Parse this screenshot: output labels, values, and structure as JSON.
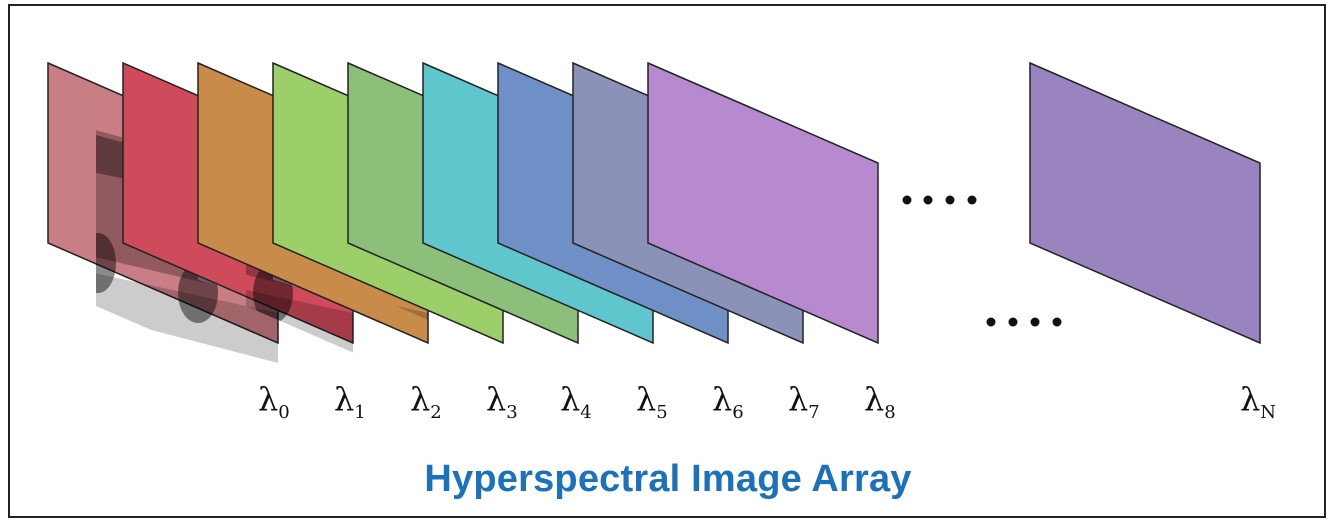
{
  "caption": "Hyperspectral Image Array",
  "symbol": "λ",
  "frames": [
    {
      "subscript": "0",
      "tint": "#c97d84"
    },
    {
      "subscript": "1",
      "tint": "#cf4a5a"
    },
    {
      "subscript": "2",
      "tint": "#c98b4a"
    },
    {
      "subscript": "3",
      "tint": "#9ccf6a"
    },
    {
      "subscript": "4",
      "tint": "#8cc07a"
    },
    {
      "subscript": "5",
      "tint": "#5ec6cc"
    },
    {
      "subscript": "6",
      "tint": "#6f8fc7"
    },
    {
      "subscript": "7",
      "tint": "#8a92b8"
    },
    {
      "subscript": "8",
      "tint": "#b78ad0"
    }
  ],
  "last_frame": {
    "subscript": "N",
    "tint": "#9a84c0"
  },
  "ellipsis": "····"
}
